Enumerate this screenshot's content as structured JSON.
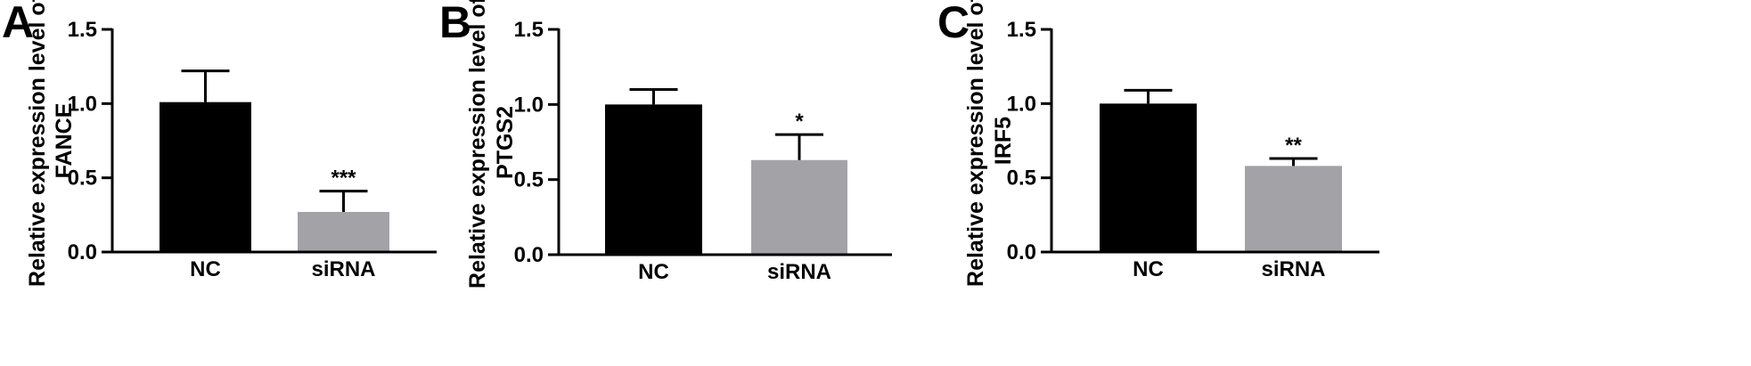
{
  "chart_data": [
    {
      "type": "bar",
      "panel": "A",
      "ylabel_lines": [
        "Relative expression level of",
        "FANCE"
      ],
      "categories": [
        "NC",
        "siRNA"
      ],
      "values": [
        1.01,
        0.27
      ],
      "errors": [
        0.21,
        0.14
      ],
      "significance": [
        "",
        "***"
      ],
      "ylim": [
        0,
        1.5
      ],
      "yticks": [
        "0.0",
        "0.5",
        "1.0",
        "1.5"
      ],
      "bar_colors": [
        "#000000",
        "#a3a3a7"
      ],
      "grid": false,
      "legend": "none"
    },
    {
      "type": "bar",
      "panel": "B",
      "ylabel_lines": [
        "Relative expression level of",
        "PTGS2"
      ],
      "categories": [
        "NC",
        "siRNA"
      ],
      "values": [
        1.0,
        0.63
      ],
      "errors": [
        0.1,
        0.17
      ],
      "significance": [
        "",
        "*"
      ],
      "ylim": [
        0,
        1.5
      ],
      "yticks": [
        "0.0",
        "0.5",
        "1.0",
        "1.5"
      ],
      "bar_colors": [
        "#000000",
        "#a3a3a7"
      ],
      "grid": false,
      "legend": "none"
    },
    {
      "type": "bar",
      "panel": "C",
      "ylabel_lines": [
        "Relative expression level of",
        "IRF5"
      ],
      "categories": [
        "NC",
        "siRNA"
      ],
      "values": [
        1.0,
        0.58
      ],
      "errors": [
        0.09,
        0.05
      ],
      "significance": [
        "",
        "**"
      ],
      "ylim": [
        0,
        1.5
      ],
      "yticks": [
        "0.0",
        "0.5",
        "1.0",
        "1.5"
      ],
      "bar_colors": [
        "#000000",
        "#a3a3a7"
      ],
      "grid": false,
      "legend": "none"
    }
  ]
}
